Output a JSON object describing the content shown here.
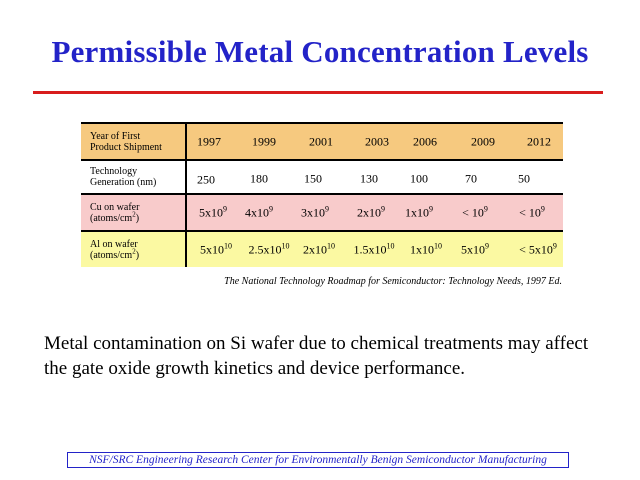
{
  "title": "Permissible Metal Concentration Levels",
  "table": {
    "rows": [
      {
        "label_lines": [
          "Year of First",
          "Product Shipment"
        ],
        "cells": [
          {
            "base": "1997"
          },
          {
            "base": "1999"
          },
          {
            "base": "2001"
          },
          {
            "base": "2003"
          },
          {
            "base": "2006"
          },
          {
            "base": "2009"
          },
          {
            "base": "2012"
          }
        ]
      },
      {
        "label_lines": [
          "Technology",
          "Generation (nm)"
        ],
        "cells": [
          {
            "base": "250"
          },
          {
            "base": "180"
          },
          {
            "base": "150"
          },
          {
            "base": "130"
          },
          {
            "base": "100"
          },
          {
            "base": "70"
          },
          {
            "base": "50"
          }
        ]
      },
      {
        "label_lines": [
          "Cu on wafer",
          "(atoms/cm",
          "2",
          ")"
        ],
        "cells": [
          {
            "base": "5x10",
            "exp": "9"
          },
          {
            "base": "4x10",
            "exp": "9"
          },
          {
            "base": "3x10",
            "exp": "9"
          },
          {
            "base": "2x10",
            "exp": "9"
          },
          {
            "base": "1x10",
            "exp": "9"
          },
          {
            "base": "< 10",
            "exp": "9"
          },
          {
            "base": "< 10",
            "exp": "9"
          }
        ]
      },
      {
        "label_lines": [
          "Al on wafer",
          "(atoms/cm",
          "2",
          ")"
        ],
        "cells": [
          {
            "base": "5x10",
            "exp": "10"
          },
          {
            "base": "2.5x10",
            "exp": "10"
          },
          {
            "base": "2x10",
            "exp": "10"
          },
          {
            "base": "1.5x10",
            "exp": "10"
          },
          {
            "base": "1x10",
            "exp": "10"
          },
          {
            "base": "5x10",
            "exp": "9"
          },
          {
            "base": "< 5x10",
            "exp": "9"
          }
        ]
      }
    ]
  },
  "citation": "The National Technology Roadmap for Semiconductor: Technology Needs, 1997 Ed.",
  "body_text": "Metal contamination on Si wafer due to chemical treatments may affect the gate oxide growth kinetics and device performance.",
  "footer": "NSF/SRC Engineering Research Center for Environmentally Benign Semiconductor Manufacturing",
  "colors": {
    "title": "#2323c8",
    "rule": "#d81d1d",
    "header_row": "#f6c97f",
    "cu_row": "#f8cbcb",
    "al_row": "#fbf9a2"
  }
}
